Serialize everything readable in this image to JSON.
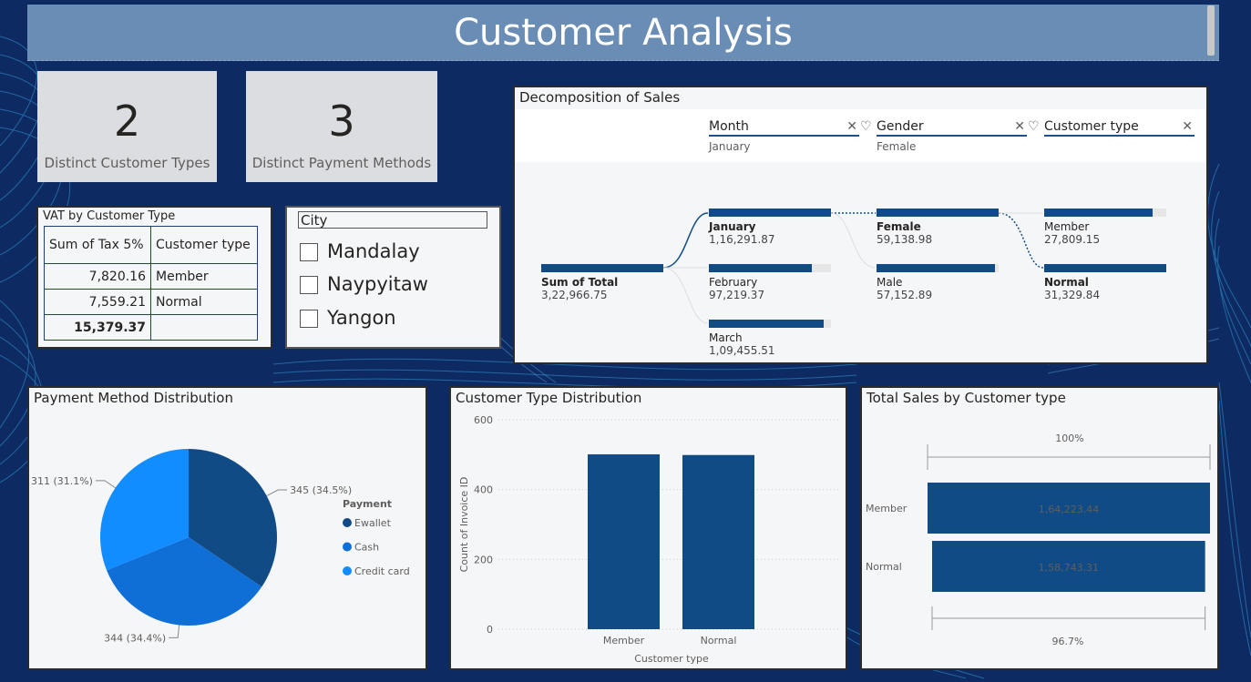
{
  "header": {
    "title": "Customer Analysis"
  },
  "cards": [
    {
      "value": "2",
      "label": "Distinct Customer Types"
    },
    {
      "value": "3",
      "label": "Distinct Payment Methods"
    }
  ],
  "vat_table": {
    "title": "VAT by Customer Type",
    "columns": [
      "Sum of Tax 5%",
      "Customer type"
    ],
    "rows": [
      {
        "tax": "7,820.16",
        "type": "Member"
      },
      {
        "tax": "7,559.21",
        "type": "Normal"
      }
    ],
    "total": "15,379.37"
  },
  "city_slicer": {
    "header": "City",
    "options": [
      "Mandalay",
      "Naypyitaw",
      "Yangon"
    ]
  },
  "decomposition": {
    "title": "Decomposition of Sales",
    "levels": [
      {
        "name": "Month",
        "value": "January"
      },
      {
        "name": "Gender",
        "value": "Female"
      },
      {
        "name": "Customer type",
        "value": ""
      }
    ],
    "root": {
      "label": "Sum of Total",
      "value": "3,22,966.75",
      "fraction": 1.0
    },
    "months": [
      {
        "label": "January",
        "value": "1,16,291.87",
        "fraction": 1.0
      },
      {
        "label": "February",
        "value": "97,219.37",
        "fraction": 0.84
      },
      {
        "label": "March",
        "value": "1,09,455.51",
        "fraction": 0.94
      }
    ],
    "genders": [
      {
        "label": "Female",
        "value": "59,138.98",
        "fraction": 1.0
      },
      {
        "label": "Male",
        "value": "57,152.89",
        "fraction": 0.97
      }
    ],
    "customer_types": [
      {
        "label": "Member",
        "value": "27,809.15",
        "fraction": 0.89
      },
      {
        "label": "Normal",
        "value": "31,329.84",
        "fraction": 1.0
      }
    ]
  },
  "payment_chart": {
    "title": "Payment Method Distribution",
    "legend_title": "Payment",
    "colors": [
      "#114b86",
      "#0f6fd6",
      "#118dff"
    ]
  },
  "customer_type_chart": {
    "title": "Customer Type Distribution",
    "color": "#114b86"
  },
  "total_sales_chart": {
    "title": "Total Sales by Customer type",
    "top_pct": "100%",
    "bottom_pct": "96.7%",
    "color": "#114b86"
  },
  "chart_data": [
    {
      "type": "pie",
      "title": "Payment Method Distribution",
      "legend_title": "Payment",
      "legend_position": "right",
      "categories": [
        "Ewallet",
        "Cash",
        "Credit card"
      ],
      "values": [
        345,
        344,
        311
      ],
      "data_labels": [
        "345 (34.5%)",
        "344 (34.4%)",
        "311 (31.1%)"
      ]
    },
    {
      "type": "bar",
      "title": "Customer Type Distribution",
      "xlabel": "Customer type",
      "ylabel": "Count of Invoice ID",
      "categories": [
        "Member",
        "Normal"
      ],
      "values": [
        501,
        499
      ],
      "ylim": [
        0,
        600
      ],
      "yticks": [
        "0",
        "200",
        "400",
        "600"
      ],
      "grid": true
    },
    {
      "type": "bar",
      "orientation": "horizontal",
      "title": "Total Sales by Customer type",
      "categories": [
        "Member",
        "Normal"
      ],
      "values": [
        164223.44,
        158743.31
      ],
      "data_labels": [
        "1,64,223.44",
        "1,58,743.31"
      ]
    }
  ]
}
